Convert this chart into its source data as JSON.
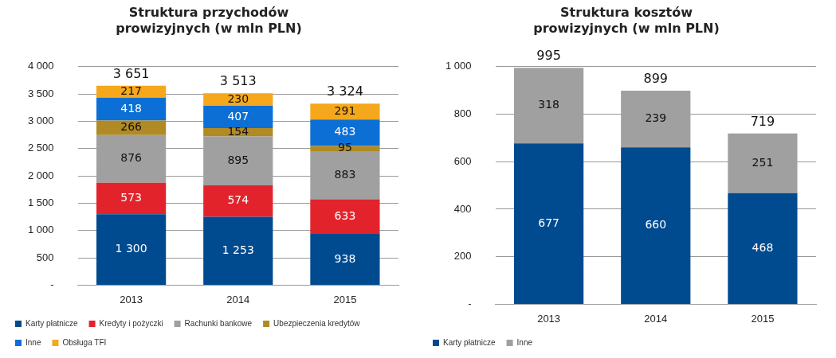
{
  "chart_data": [
    {
      "type": "bar",
      "title": "Struktura przychodów prowizyjnych (w mln PLN)",
      "categories": [
        "2013",
        "2014",
        "2015"
      ],
      "stacked": true,
      "series": [
        {
          "name": "Karty płatnicze",
          "color": "#004a8f",
          "values": [
            1300,
            1253,
            938
          ],
          "value_labels": [
            "1 300",
            "1 253",
            "938"
          ]
        },
        {
          "name": "Kredyty i pożyczki",
          "color": "#e3232c",
          "values": [
            573,
            574,
            633
          ],
          "value_labels": [
            "573",
            "574",
            "633"
          ]
        },
        {
          "name": "Rachunki bankowe",
          "color": "#a0a0a0",
          "values": [
            876,
            895,
            883
          ],
          "value_labels": [
            "876",
            "895",
            "883"
          ]
        },
        {
          "name": "Ubezpieczenia kredytów",
          "color": "#b08a24",
          "values": [
            266,
            154,
            95
          ],
          "value_labels": [
            "266",
            "154",
            "95"
          ]
        },
        {
          "name": "Inne",
          "color": "#0b6fd6",
          "values": [
            418,
            407,
            483
          ],
          "value_labels": [
            "418",
            "407",
            "483"
          ]
        },
        {
          "name": "Obsługa TFI",
          "color": "#f5a81c",
          "values": [
            217,
            230,
            291
          ],
          "value_labels": [
            "217",
            "230",
            "291"
          ]
        }
      ],
      "totals": [
        "3 651",
        "3 513",
        "3 324"
      ],
      "ylim": [
        0,
        4000
      ],
      "yticks": [
        {
          "value": 0,
          "label": "-"
        },
        {
          "value": 500,
          "label": "500"
        },
        {
          "value": 1000,
          "label": "1 000"
        },
        {
          "value": 1500,
          "label": "1 500"
        },
        {
          "value": 2000,
          "label": "2 000"
        },
        {
          "value": 2500,
          "label": "2 500"
        },
        {
          "value": 3000,
          "label": "3 000"
        },
        {
          "value": 3500,
          "label": "3 500"
        },
        {
          "value": 4000,
          "label": "4 000"
        }
      ],
      "grid": "y",
      "legend": "bottom"
    },
    {
      "type": "bar",
      "title": "Struktura kosztów prowizyjnych (w mln PLN)",
      "categories": [
        "2013",
        "2014",
        "2015"
      ],
      "stacked": true,
      "series": [
        {
          "name": "Karty płatnicze",
          "color": "#004a8f",
          "values": [
            677,
            660,
            468
          ],
          "value_labels": [
            "677",
            "660",
            "468"
          ]
        },
        {
          "name": "Inne",
          "color": "#a0a0a0",
          "values": [
            318,
            239,
            251
          ],
          "value_labels": [
            "318",
            "239",
            "251"
          ]
        }
      ],
      "totals": [
        "995",
        "899",
        "719"
      ],
      "ylim": [
        0,
        1000
      ],
      "yticks": [
        {
          "value": 0,
          "label": "-"
        },
        {
          "value": 200,
          "label": "200"
        },
        {
          "value": 400,
          "label": "400"
        },
        {
          "value": 600,
          "label": "600"
        },
        {
          "value": 800,
          "label": "800"
        },
        {
          "value": 1000,
          "label": "1 000"
        }
      ],
      "grid": "y",
      "legend": "bottom"
    }
  ]
}
